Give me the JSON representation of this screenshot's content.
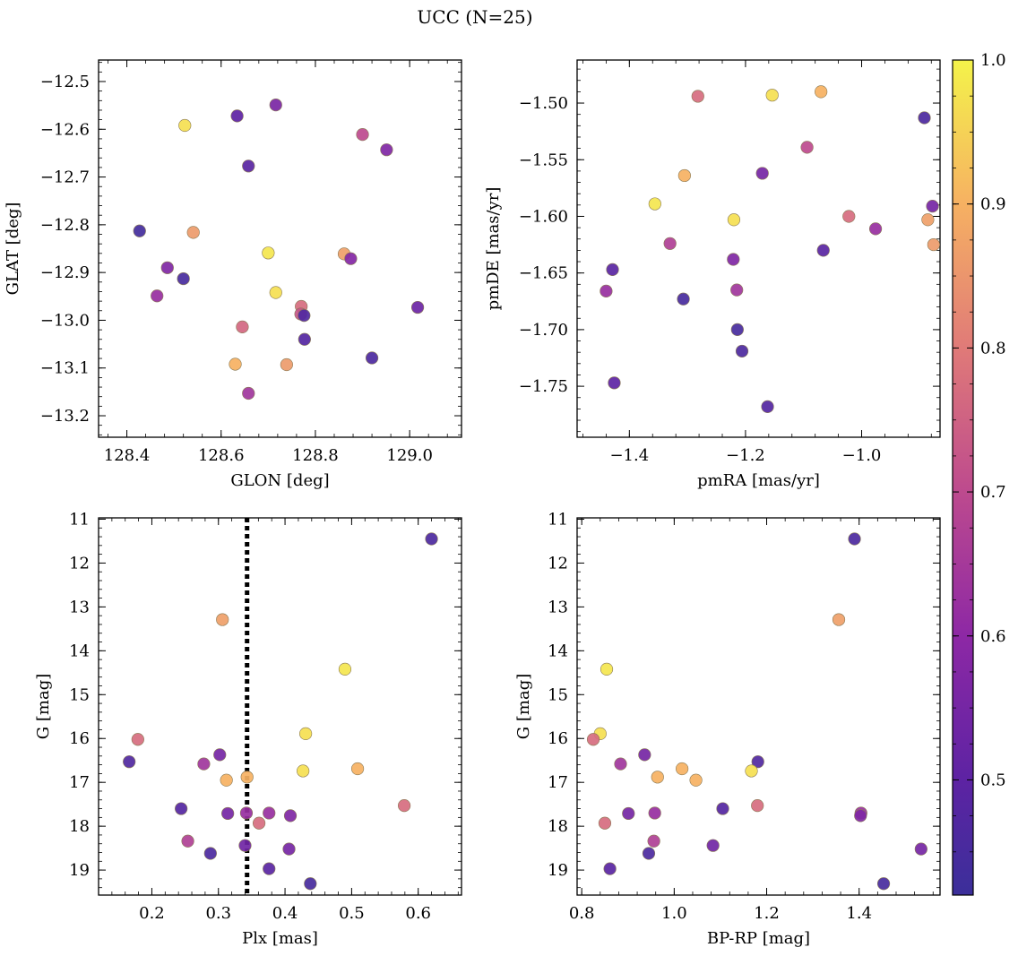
{
  "figure": {
    "title": "UCC (N=25)"
  },
  "colorbar": {
    "colormap": "plasma",
    "range": [
      0.42,
      1.0
    ],
    "ticks": [
      0.5,
      0.6,
      0.7,
      0.8,
      0.9,
      1.0
    ],
    "tick_labels": [
      "0.5",
      "0.6",
      "0.7",
      "0.8",
      "0.9",
      "1.0"
    ]
  },
  "chart_data": [
    {
      "type": "scatter",
      "xlabel": "GLON [deg]",
      "ylabel": "GLAT [deg]",
      "xlim": [
        128.34,
        129.11
      ],
      "ylim": [
        -13.245,
        -12.455
      ],
      "xticks": [
        128.4,
        128.6,
        128.8,
        129.0
      ],
      "xtick_labels": [
        "128.4",
        "128.6",
        "128.8",
        "129.0"
      ],
      "yticks": [
        -12.5,
        -12.6,
        -12.7,
        -12.8,
        -12.9,
        -13.0,
        -13.1,
        -13.2
      ],
      "ytick_labels": [
        "−12.5",
        "−12.6",
        "−12.7",
        "−12.8",
        "−12.9",
        "−13.0",
        "−13.1",
        "−13.2"
      ],
      "points": [
        {
          "x": 128.523,
          "y": -12.592,
          "c": 0.97
        },
        {
          "x": 128.634,
          "y": -12.572,
          "c": 0.5
        },
        {
          "x": 128.716,
          "y": -12.549,
          "c": 0.56
        },
        {
          "x": 128.9,
          "y": -12.611,
          "c": 0.7
        },
        {
          "x": 128.951,
          "y": -12.643,
          "c": 0.57
        },
        {
          "x": 128.658,
          "y": -12.677,
          "c": 0.49
        },
        {
          "x": 128.427,
          "y": -12.813,
          "c": 0.44
        },
        {
          "x": 128.541,
          "y": -12.816,
          "c": 0.86
        },
        {
          "x": 128.7,
          "y": -12.859,
          "c": 0.98
        },
        {
          "x": 128.861,
          "y": -12.861,
          "c": 0.87
        },
        {
          "x": 128.875,
          "y": -12.871,
          "c": 0.58
        },
        {
          "x": 128.486,
          "y": -12.89,
          "c": 0.57
        },
        {
          "x": 128.52,
          "y": -12.913,
          "c": 0.45
        },
        {
          "x": 128.716,
          "y": -12.942,
          "c": 0.97
        },
        {
          "x": 128.464,
          "y": -12.949,
          "c": 0.62
        },
        {
          "x": 128.77,
          "y": -12.971,
          "c": 0.77
        },
        {
          "x": 129.017,
          "y": -12.973,
          "c": 0.53
        },
        {
          "x": 128.769,
          "y": -12.987,
          "c": 0.72
        },
        {
          "x": 128.776,
          "y": -12.99,
          "c": 0.47
        },
        {
          "x": 128.645,
          "y": -13.014,
          "c": 0.76
        },
        {
          "x": 128.777,
          "y": -13.04,
          "c": 0.48
        },
        {
          "x": 128.92,
          "y": -13.079,
          "c": 0.46
        },
        {
          "x": 128.63,
          "y": -13.092,
          "c": 0.9
        },
        {
          "x": 128.739,
          "y": -13.093,
          "c": 0.86
        },
        {
          "x": 128.658,
          "y": -13.153,
          "c": 0.64
        }
      ]
    },
    {
      "type": "scatter",
      "xlabel": "pmRA [mas/yr]",
      "ylabel": "pmDE [mas/yr]",
      "xlim": [
        -1.49,
        -0.865
      ],
      "ylim": [
        -1.795,
        -1.462
      ],
      "xticks": [
        -1.4,
        -1.2,
        -1.0
      ],
      "xtick_labels": [
        "−1.4",
        "−1.2",
        "−1.0"
      ],
      "yticks": [
        -1.5,
        -1.55,
        -1.6,
        -1.65,
        -1.7,
        -1.75
      ],
      "ytick_labels": [
        "−1.50",
        "−1.55",
        "−1.60",
        "−1.65",
        "−1.70",
        "−1.75"
      ],
      "points": [
        {
          "x": -1.282,
          "y": -1.494,
          "c": 0.77
        },
        {
          "x": -1.154,
          "y": -1.493,
          "c": 0.97
        },
        {
          "x": -1.07,
          "y": -1.49,
          "c": 0.9
        },
        {
          "x": -0.892,
          "y": -1.513,
          "c": 0.46
        },
        {
          "x": -1.094,
          "y": -1.539,
          "c": 0.7
        },
        {
          "x": -1.171,
          "y": -1.562,
          "c": 0.55
        },
        {
          "x": -1.305,
          "y": -1.564,
          "c": 0.9
        },
        {
          "x": -1.356,
          "y": -1.589,
          "c": 0.98
        },
        {
          "x": -0.878,
          "y": -1.591,
          "c": 0.55
        },
        {
          "x": -1.022,
          "y": -1.6,
          "c": 0.77
        },
        {
          "x": -1.22,
          "y": -1.603,
          "c": 0.97
        },
        {
          "x": -0.886,
          "y": -1.603,
          "c": 0.87
        },
        {
          "x": -0.976,
          "y": -1.611,
          "c": 0.62
        },
        {
          "x": -1.33,
          "y": -1.624,
          "c": 0.67
        },
        {
          "x": -0.876,
          "y": -1.625,
          "c": 0.86
        },
        {
          "x": -1.066,
          "y": -1.63,
          "c": 0.49
        },
        {
          "x": -1.221,
          "y": -1.638,
          "c": 0.57
        },
        {
          "x": -1.429,
          "y": -1.647,
          "c": 0.49
        },
        {
          "x": -1.44,
          "y": -1.666,
          "c": 0.62
        },
        {
          "x": -1.215,
          "y": -1.665,
          "c": 0.64
        },
        {
          "x": -1.307,
          "y": -1.673,
          "c": 0.45
        },
        {
          "x": -1.214,
          "y": -1.7,
          "c": 0.45
        },
        {
          "x": -1.206,
          "y": -1.719,
          "c": 0.46
        },
        {
          "x": -1.426,
          "y": -1.747,
          "c": 0.5
        },
        {
          "x": -1.162,
          "y": -1.768,
          "c": 0.48
        }
      ]
    },
    {
      "type": "scatter",
      "xlabel": "Plx [mas]",
      "ylabel": "G [mag]",
      "xlim": [
        0.12,
        0.665
      ],
      "ylim": [
        19.57,
        10.97
      ],
      "xticks": [
        0.2,
        0.3,
        0.4,
        0.5,
        0.6
      ],
      "xtick_labels": [
        "0.2",
        "0.3",
        "0.4",
        "0.5",
        "0.6"
      ],
      "yticks": [
        11,
        12,
        13,
        14,
        15,
        16,
        17,
        18,
        19
      ],
      "ytick_labels": [
        "11",
        "12",
        "13",
        "14",
        "15",
        "16",
        "17",
        "18",
        "19"
      ],
      "vline": {
        "x": 0.343,
        "style": "dotted"
      },
      "points": [
        {
          "x": 0.62,
          "y": 11.45,
          "c": 0.46
        },
        {
          "x": 0.306,
          "y": 13.29,
          "c": 0.87
        },
        {
          "x": 0.49,
          "y": 14.42,
          "c": 0.98
        },
        {
          "x": 0.431,
          "y": 15.89,
          "c": 0.97
        },
        {
          "x": 0.179,
          "y": 16.02,
          "c": 0.77
        },
        {
          "x": 0.302,
          "y": 16.37,
          "c": 0.55
        },
        {
          "x": 0.166,
          "y": 16.53,
          "c": 0.47
        },
        {
          "x": 0.278,
          "y": 16.58,
          "c": 0.64
        },
        {
          "x": 0.509,
          "y": 16.69,
          "c": 0.9
        },
        {
          "x": 0.427,
          "y": 16.74,
          "c": 0.97
        },
        {
          "x": 0.343,
          "y": 16.88,
          "c": 0.9
        },
        {
          "x": 0.312,
          "y": 16.95,
          "c": 0.9
        },
        {
          "x": 0.579,
          "y": 17.53,
          "c": 0.77
        },
        {
          "x": 0.244,
          "y": 17.6,
          "c": 0.48
        },
        {
          "x": 0.314,
          "y": 17.71,
          "c": 0.55
        },
        {
          "x": 0.342,
          "y": 17.7,
          "c": 0.62
        },
        {
          "x": 0.376,
          "y": 17.7,
          "c": 0.62
        },
        {
          "x": 0.408,
          "y": 17.76,
          "c": 0.57
        },
        {
          "x": 0.361,
          "y": 17.93,
          "c": 0.77
        },
        {
          "x": 0.254,
          "y": 18.34,
          "c": 0.67
        },
        {
          "x": 0.34,
          "y": 18.44,
          "c": 0.54
        },
        {
          "x": 0.406,
          "y": 18.52,
          "c": 0.55
        },
        {
          "x": 0.288,
          "y": 18.62,
          "c": 0.46
        },
        {
          "x": 0.376,
          "y": 18.97,
          "c": 0.49
        },
        {
          "x": 0.438,
          "y": 19.31,
          "c": 0.45
        }
      ]
    },
    {
      "type": "scatter",
      "xlabel": "BP-RP [mag]",
      "ylabel": "G [mag]",
      "xlim": [
        0.79,
        1.575
      ],
      "ylim": [
        19.57,
        10.97
      ],
      "xticks": [
        0.8,
        1.0,
        1.2,
        1.4
      ],
      "xtick_labels": [
        "0.8",
        "1.0",
        "1.2",
        "1.4"
      ],
      "yticks": [
        11,
        12,
        13,
        14,
        15,
        16,
        17,
        18,
        19
      ],
      "ytick_labels": [
        "11",
        "12",
        "13",
        "14",
        "15",
        "16",
        "17",
        "18",
        "19"
      ],
      "points": [
        {
          "x": 1.39,
          "y": 11.45,
          "c": 0.46
        },
        {
          "x": 1.356,
          "y": 13.29,
          "c": 0.87
        },
        {
          "x": 0.854,
          "y": 14.42,
          "c": 0.98
        },
        {
          "x": 0.84,
          "y": 15.89,
          "c": 0.97
        },
        {
          "x": 0.825,
          "y": 16.02,
          "c": 0.77
        },
        {
          "x": 0.936,
          "y": 16.37,
          "c": 0.55
        },
        {
          "x": 1.181,
          "y": 16.53,
          "c": 0.47
        },
        {
          "x": 0.884,
          "y": 16.58,
          "c": 0.64
        },
        {
          "x": 1.017,
          "y": 16.69,
          "c": 0.9
        },
        {
          "x": 1.167,
          "y": 16.74,
          "c": 0.97
        },
        {
          "x": 0.964,
          "y": 16.88,
          "c": 0.9
        },
        {
          "x": 1.047,
          "y": 16.95,
          "c": 0.9
        },
        {
          "x": 1.18,
          "y": 17.53,
          "c": 0.77
        },
        {
          "x": 1.105,
          "y": 17.6,
          "c": 0.48
        },
        {
          "x": 0.901,
          "y": 17.71,
          "c": 0.55
        },
        {
          "x": 0.958,
          "y": 17.7,
          "c": 0.62
        },
        {
          "x": 1.404,
          "y": 17.7,
          "c": 0.62
        },
        {
          "x": 1.403,
          "y": 17.76,
          "c": 0.57
        },
        {
          "x": 0.85,
          "y": 17.93,
          "c": 0.77
        },
        {
          "x": 0.956,
          "y": 18.34,
          "c": 0.67
        },
        {
          "x": 1.084,
          "y": 18.44,
          "c": 0.54
        },
        {
          "x": 1.534,
          "y": 18.52,
          "c": 0.55
        },
        {
          "x": 0.945,
          "y": 18.62,
          "c": 0.46
        },
        {
          "x": 0.861,
          "y": 18.97,
          "c": 0.49
        },
        {
          "x": 1.453,
          "y": 19.31,
          "c": 0.45
        }
      ]
    }
  ]
}
